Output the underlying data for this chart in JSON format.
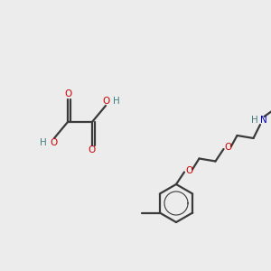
{
  "bg_color": "#ececec",
  "bond_color": "#3a3a3a",
  "oxygen_color": "#cc0000",
  "nitrogen_color": "#0000cc",
  "hydrogen_color": "#408080",
  "line_width": 1.6,
  "figsize": [
    3.0,
    3.0
  ],
  "dpi": 100,
  "xlim": [
    0,
    10
  ],
  "ylim": [
    0,
    10
  ]
}
